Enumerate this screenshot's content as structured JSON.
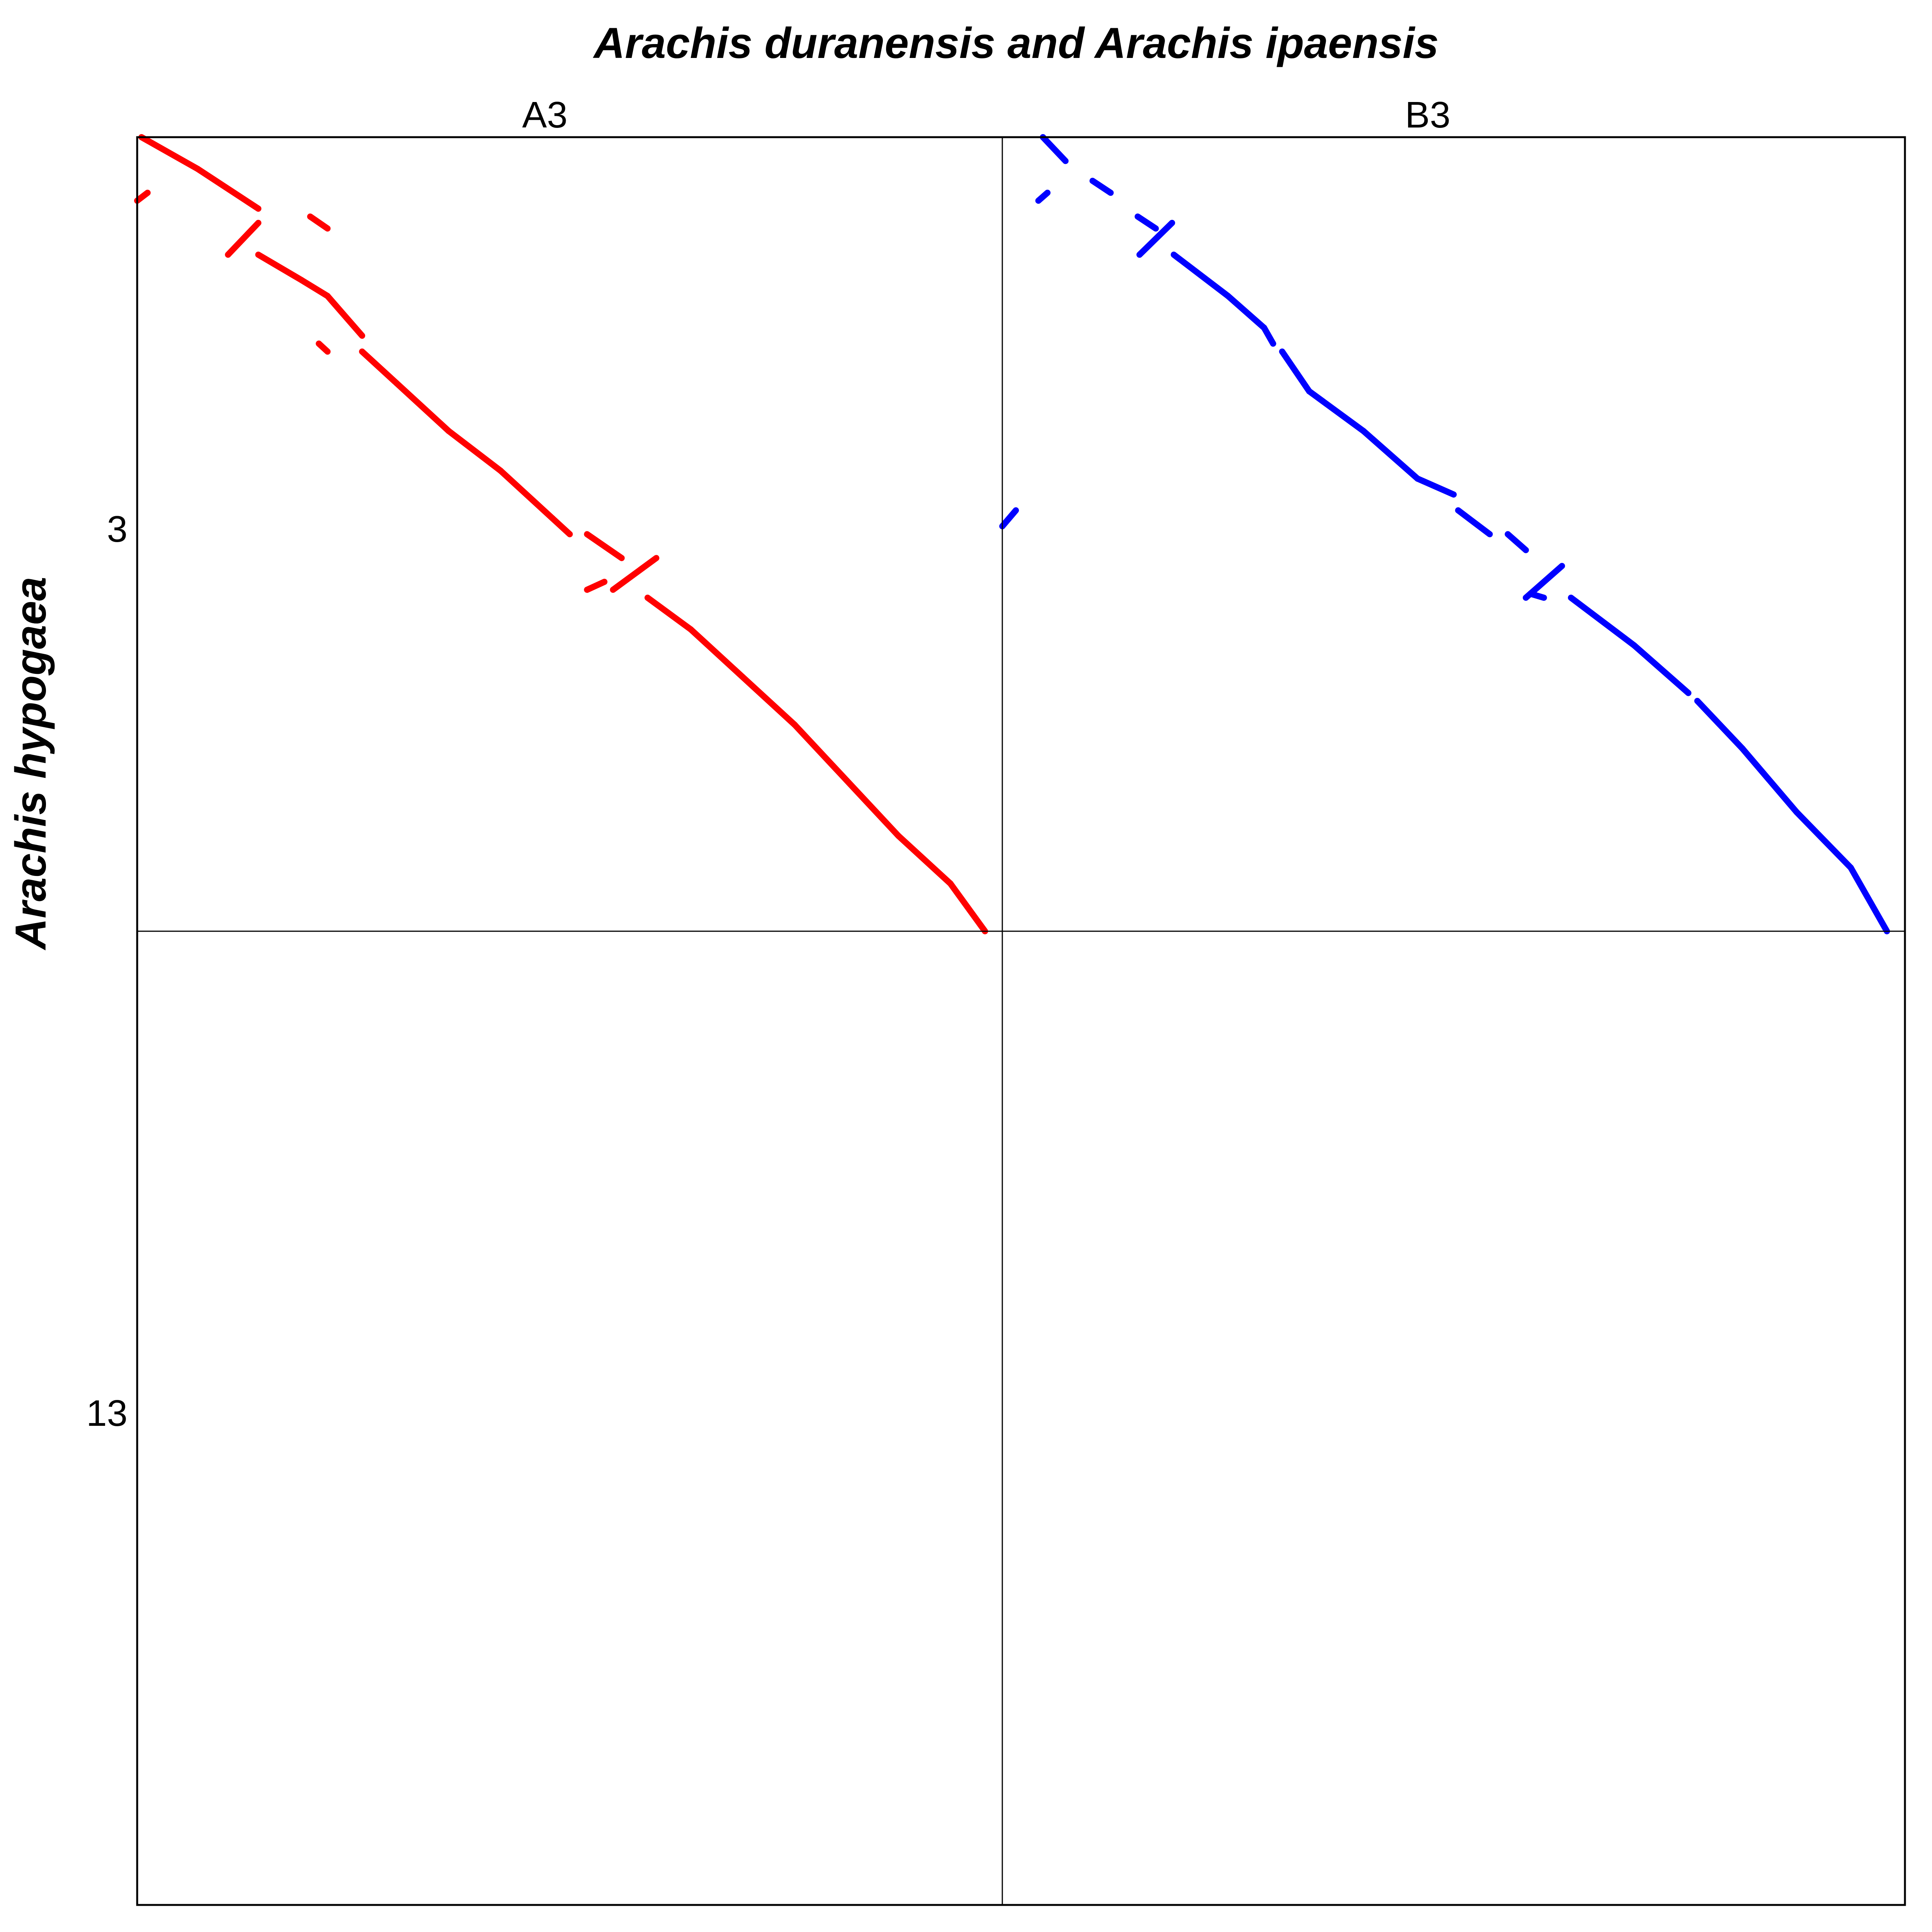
{
  "chart_data": {
    "type": "scatter",
    "title": "Arachis duranensis and Arachis ipaensis",
    "ylabel": "Arachis hypogaea",
    "panels": [
      {
        "label": "A3",
        "color": "#ff0000"
      },
      {
        "label": "B3",
        "color": "#0000ff"
      }
    ],
    "y_rows": [
      {
        "label": "3",
        "range": [
          0,
          1
        ]
      },
      {
        "label": "13",
        "range": [
          0,
          1
        ]
      }
    ],
    "x_range": [
      0,
      1
    ],
    "grid": false,
    "legend": "none",
    "series": [
      {
        "name": "A3",
        "panel": 0,
        "row": 0,
        "color": "#ff0000",
        "segments": [
          [
            [
              0.005,
              0.0
            ],
            [
              0.07,
              0.04
            ]
          ],
          [
            [
              0.07,
              0.04
            ],
            [
              0.14,
              0.09
            ]
          ],
          [
            [
              0.0,
              0.08
            ],
            [
              0.012,
              0.07
            ]
          ],
          [
            [
              0.2,
              0.1
            ],
            [
              0.22,
              0.115
            ]
          ],
          [
            [
              0.105,
              0.148
            ],
            [
              0.14,
              0.108
            ]
          ],
          [
            [
              0.14,
              0.148
            ],
            [
              0.19,
              0.18
            ]
          ],
          [
            [
              0.19,
              0.18
            ],
            [
              0.22,
              0.2
            ]
          ],
          [
            [
              0.22,
              0.2
            ],
            [
              0.26,
              0.25
            ]
          ],
          [
            [
              0.21,
              0.26
            ],
            [
              0.22,
              0.27
            ]
          ],
          [
            [
              0.26,
              0.27
            ],
            [
              0.3,
              0.31
            ]
          ],
          [
            [
              0.3,
              0.31
            ],
            [
              0.36,
              0.37
            ]
          ],
          [
            [
              0.36,
              0.37
            ],
            [
              0.42,
              0.42
            ]
          ],
          [
            [
              0.42,
              0.42
            ],
            [
              0.48,
              0.48
            ]
          ],
          [
            [
              0.48,
              0.48
            ],
            [
              0.5,
              0.5
            ]
          ],
          [
            [
              0.52,
              0.5
            ],
            [
              0.56,
              0.53
            ]
          ],
          [
            [
              0.52,
              0.57
            ],
            [
              0.54,
              0.56
            ]
          ],
          [
            [
              0.55,
              0.57
            ],
            [
              0.6,
              0.53
            ]
          ],
          [
            [
              0.59,
              0.58
            ],
            [
              0.64,
              0.62
            ]
          ],
          [
            [
              0.64,
              0.62
            ],
            [
              0.7,
              0.68
            ]
          ],
          [
            [
              0.7,
              0.68
            ],
            [
              0.76,
              0.74
            ]
          ],
          [
            [
              0.76,
              0.74
            ],
            [
              0.82,
              0.81
            ]
          ],
          [
            [
              0.82,
              0.81
            ],
            [
              0.88,
              0.88
            ]
          ],
          [
            [
              0.88,
              0.88
            ],
            [
              0.94,
              0.94
            ]
          ],
          [
            [
              0.94,
              0.94
            ],
            [
              0.98,
              1.0
            ]
          ]
        ]
      },
      {
        "name": "B3",
        "panel": 1,
        "row": 0,
        "color": "#0000ff",
        "segments": [
          [
            [
              0.045,
              0.0
            ],
            [
              0.07,
              0.03
            ]
          ],
          [
            [
              0.1,
              0.055
            ],
            [
              0.12,
              0.07
            ]
          ],
          [
            [
              0.04,
              0.08
            ],
            [
              0.05,
              0.07
            ]
          ],
          [
            [
              0.15,
              0.1
            ],
            [
              0.17,
              0.115
            ]
          ],
          [
            [
              0.152,
              0.148
            ],
            [
              0.188,
              0.108
            ]
          ],
          [
            [
              0.19,
              0.148
            ],
            [
              0.25,
              0.2
            ]
          ],
          [
            [
              0.25,
              0.2
            ],
            [
              0.29,
              0.24
            ]
          ],
          [
            [
              0.29,
              0.24
            ],
            [
              0.3,
              0.26
            ]
          ],
          [
            [
              0.31,
              0.27
            ],
            [
              0.34,
              0.32
            ]
          ],
          [
            [
              0.34,
              0.32
            ],
            [
              0.4,
              0.37
            ]
          ],
          [
            [
              0.4,
              0.37
            ],
            [
              0.46,
              0.43
            ]
          ],
          [
            [
              0.46,
              0.43
            ],
            [
              0.5,
              0.45
            ]
          ],
          [
            [
              0.505,
              0.47
            ],
            [
              0.54,
              0.5
            ]
          ],
          [
            [
              0.56,
              0.5
            ],
            [
              0.58,
              0.52
            ]
          ],
          [
            [
              0.0,
              0.49
            ],
            [
              0.015,
              0.47
            ]
          ],
          [
            [
              0.585,
              0.575
            ],
            [
              0.6,
              0.58
            ]
          ],
          [
            [
              0.58,
              0.58
            ],
            [
              0.62,
              0.54
            ]
          ],
          [
            [
              0.63,
              0.58
            ],
            [
              0.7,
              0.64
            ]
          ],
          [
            [
              0.7,
              0.64
            ],
            [
              0.76,
              0.7
            ]
          ],
          [
            [
              0.77,
              0.71
            ],
            [
              0.82,
              0.77
            ]
          ],
          [
            [
              0.82,
              0.77
            ],
            [
              0.88,
              0.85
            ]
          ],
          [
            [
              0.88,
              0.85
            ],
            [
              0.94,
              0.92
            ]
          ],
          [
            [
              0.94,
              0.92
            ],
            [
              0.98,
              1.0
            ]
          ]
        ]
      }
    ]
  }
}
